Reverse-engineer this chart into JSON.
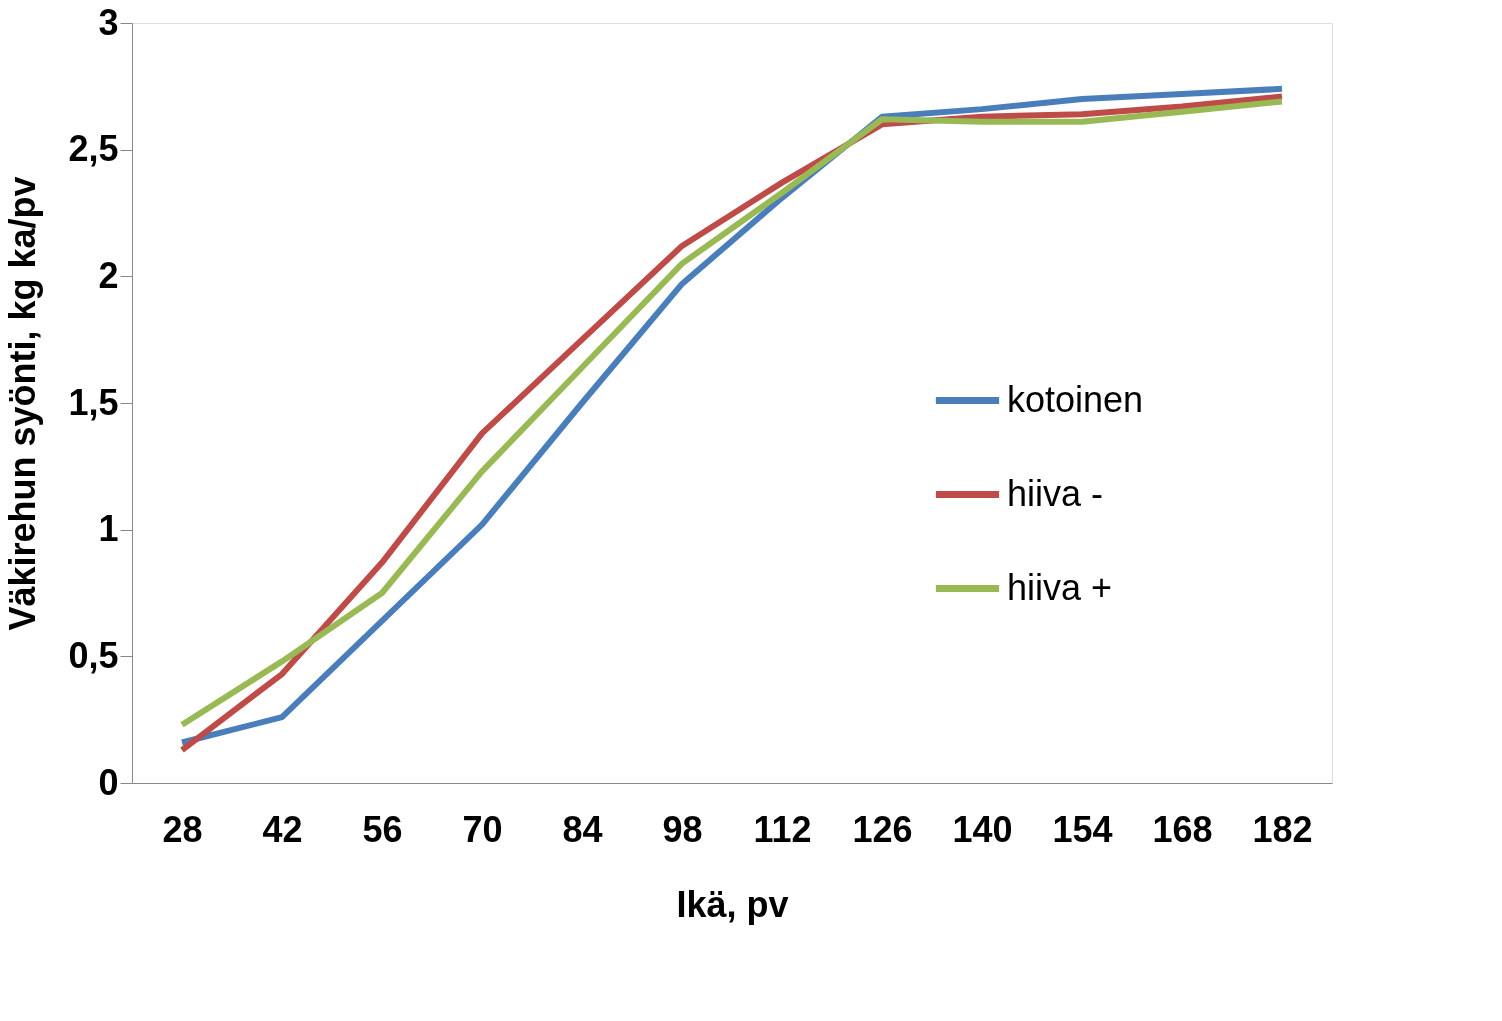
{
  "chart_data": {
    "type": "line",
    "xlabel": "Ikä, pv",
    "ylabel": "Väkirehun syönti, kg ka/pv",
    "categories": [
      "28",
      "42",
      "56",
      "70",
      "84",
      "98",
      "112",
      "126",
      "140",
      "154",
      "168",
      "182"
    ],
    "series": [
      {
        "name": "kotoinen",
        "color": "#4a7ebb",
        "values": [
          0.16,
          0.26,
          0.64,
          1.02,
          1.5,
          1.97,
          2.31,
          2.63,
          2.66,
          2.7,
          2.72,
          2.74
        ]
      },
      {
        "name": "hiiva -",
        "color": "#be4b48",
        "values": [
          0.13,
          0.43,
          0.87,
          1.38,
          1.75,
          2.12,
          2.37,
          2.6,
          2.63,
          2.64,
          2.67,
          2.71
        ]
      },
      {
        "name": "hiiva +",
        "color": "#98b954",
        "values": [
          0.23,
          0.48,
          0.75,
          1.23,
          1.64,
          2.05,
          2.33,
          2.62,
          2.61,
          2.61,
          2.65,
          2.69
        ]
      }
    ],
    "ylim": [
      0,
      3
    ],
    "yticks": [
      0,
      {
        "value": 0.5,
        "label": "0,5"
      },
      1,
      {
        "value": 1.5,
        "label": "1,5"
      },
      2,
      {
        "value": 2.5,
        "label": "2,5"
      },
      3
    ],
    "grid": false,
    "legend": "right",
    "marker": "none",
    "line_style": "solid"
  }
}
